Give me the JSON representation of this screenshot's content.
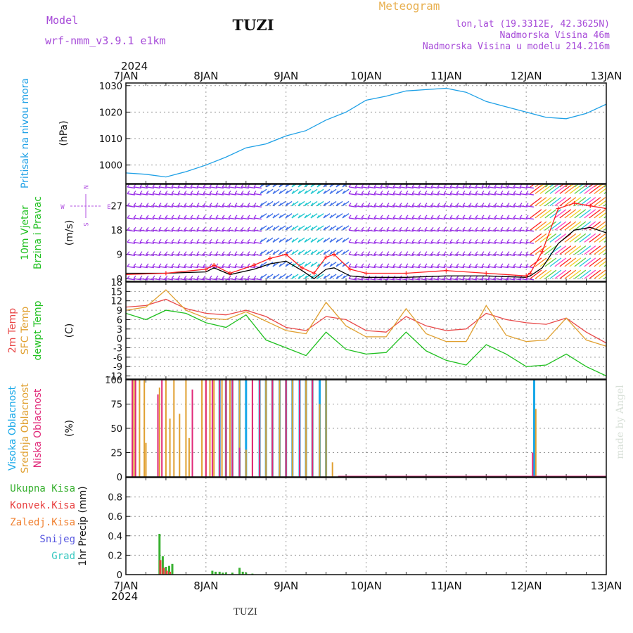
{
  "header": {
    "model_label": "Model",
    "model_name": "wrf-nmm_v3.9.1 e1km",
    "station": "TUZI",
    "product": "Meteogram",
    "lonlat": "lon,lat (19.3312E, 42.3625N)",
    "elevation": "Nadmorska Visina 46m",
    "model_elevation": "Nadmorska Visina u modelu 214.216m"
  },
  "footer": {
    "station": "TUZI",
    "credit": "made by Angel"
  },
  "time_axis": {
    "year": "2024",
    "ticks": [
      "7JAN",
      "8JAN",
      "9JAN",
      "10JAN",
      "11JAN",
      "12JAN",
      "13JAN"
    ]
  },
  "colors": {
    "pressure": "#1ea0e6",
    "wind_speed": "#000000",
    "wind_gust": "#ff2020",
    "t2m": "#e84848",
    "sfc": "#e0a030",
    "dewpt": "#20c020",
    "cloud_high": "#18a8e8",
    "cloud_mid": "#e0a030",
    "cloud_low": "#e02878",
    "rain_total": "#38b030",
    "rain_conv": "#e84040",
    "frozen": "#f08030",
    "snow": "#5858e0",
    "graupel": "#38c8c0",
    "barb": "#9a30e8"
  },
  "chart_data": [
    {
      "type": "line",
      "panel": "pressure",
      "label_lines": [
        "Pritisak na nivou mora"
      ],
      "unit": "(hPa)",
      "ylim": [
        993,
        1031
      ],
      "yticks": [
        1000,
        1010,
        1020,
        1030
      ],
      "grid": true,
      "series": [
        {
          "x": [
            0,
            0.25,
            0.5,
            0.75,
            1.0,
            1.25,
            1.5,
            1.75,
            2.0,
            2.25,
            2.5,
            2.75,
            3.0,
            3.25,
            3.5,
            3.75,
            4.0,
            4.25,
            4.5,
            4.75,
            5.0,
            5.25,
            5.5,
            5.75,
            6.0
          ],
          "values": [
            997,
            996.5,
            995.5,
            997.5,
            1000,
            1003,
            1006.5,
            1008,
            1011,
            1013,
            1017,
            1020,
            1024.5,
            1026,
            1028,
            1028.5,
            1029,
            1027.5,
            1024,
            1022,
            1020,
            1018,
            1017.5,
            1019.5,
            1023
          ]
        }
      ]
    },
    {
      "type": "line",
      "panel": "wind",
      "label_lines": [
        "10m Vjetar",
        "Brzina i Pravac"
      ],
      "unit": "(m/s)",
      "ylim": [
        -1,
        35
      ],
      "yticks": [
        0,
        9,
        18,
        27
      ],
      "grid": true,
      "compass": {
        "N": "N",
        "S": "S",
        "E": "E",
        "W": "W"
      },
      "series": [
        {
          "name_key": "speed",
          "x": [
            0,
            0.5,
            1.0,
            1.1,
            1.3,
            1.6,
            1.8,
            2.0,
            2.2,
            2.35,
            2.5,
            2.6,
            2.8,
            3.0,
            3.5,
            4.0,
            4.5,
            5.0,
            5.05,
            5.2,
            5.4,
            5.6,
            5.8,
            6.0
          ],
          "values": [
            2,
            2,
            2.5,
            4,
            1.5,
            3.5,
            5.5,
            6.5,
            3,
            0,
            3.5,
            4,
            1,
            0.5,
            0.5,
            1,
            1,
            0.5,
            1,
            4,
            13,
            18,
            19,
            17
          ]
        },
        {
          "name_key": "gust",
          "x": [
            0,
            0.5,
            1.0,
            1.1,
            1.3,
            1.6,
            1.8,
            2.0,
            2.2,
            2.35,
            2.5,
            2.6,
            2.8,
            3.0,
            3.5,
            4.0,
            4.5,
            5.0,
            5.05,
            5.2,
            5.4,
            5.6,
            5.8,
            6.0
          ],
          "values": [
            1.5,
            2,
            3.5,
            5,
            2,
            5,
            7.5,
            9,
            4,
            2,
            8,
            9,
            3.5,
            2,
            2,
            3,
            2,
            1,
            2,
            10,
            26,
            28,
            27,
            26
          ]
        }
      ]
    },
    {
      "type": "line",
      "panel": "temperature",
      "label_lines": [
        "2m Temp",
        "SFC Temp",
        "dewpt Temp"
      ],
      "unit": "(C)",
      "ylim": [
        -13,
        18
      ],
      "yticks": [
        -12,
        -9,
        -6,
        -3,
        0,
        3,
        6,
        9,
        12,
        15,
        18
      ],
      "grid": true,
      "series": [
        {
          "name_key": "t2m",
          "x": [
            0,
            0.25,
            0.5,
            0.75,
            1.0,
            1.25,
            1.5,
            1.75,
            2.0,
            2.25,
            2.5,
            2.75,
            3.0,
            3.25,
            3.5,
            3.75,
            4.0,
            4.25,
            4.5,
            4.75,
            5.0,
            5.25,
            5.5,
            5.75,
            6.0
          ],
          "values": [
            10,
            10.5,
            12.5,
            9.5,
            8,
            7.5,
            9,
            7,
            3.5,
            2.5,
            7,
            6,
            2.5,
            2,
            7,
            4,
            2.5,
            3,
            8,
            6,
            5,
            4.5,
            6.5,
            2,
            -1.5
          ]
        },
        {
          "name_key": "sfc",
          "x": [
            0,
            0.25,
            0.5,
            0.75,
            1.0,
            1.25,
            1.5,
            1.75,
            2.0,
            2.25,
            2.5,
            2.75,
            3.0,
            3.25,
            3.5,
            3.75,
            4.0,
            4.25,
            4.5,
            4.75,
            5.0,
            5.25,
            5.5,
            5.75,
            6.0
          ],
          "values": [
            9,
            10,
            15.5,
            9,
            6.5,
            6,
            8.5,
            5.5,
            2.5,
            1.5,
            11.5,
            4,
            0.5,
            0.5,
            9.5,
            1.5,
            -1,
            -1,
            10.5,
            1,
            -1,
            -0.5,
            6.5,
            -0.5,
            -2.5
          ]
        },
        {
          "name_key": "dewpt",
          "x": [
            0,
            0.25,
            0.5,
            0.75,
            1.0,
            1.25,
            1.5,
            1.75,
            2.0,
            2.25,
            2.5,
            2.75,
            3.0,
            3.25,
            3.5,
            3.75,
            4.0,
            4.25,
            4.5,
            4.75,
            5.0,
            5.25,
            5.5,
            5.75,
            6.0
          ],
          "values": [
            8,
            6,
            9,
            8,
            5,
            3.5,
            7.5,
            -0.5,
            -3,
            -5.5,
            2,
            -3.5,
            -5,
            -4.5,
            2,
            -4,
            -7,
            -8.5,
            -2,
            -5,
            -9,
            -8.5,
            -5,
            -9,
            -12
          ]
        }
      ]
    },
    {
      "type": "bar",
      "panel": "clouds",
      "label_lines": [
        "Visoka Oblacnost",
        "Srednja Oblacnost",
        "Niska Oblacnost"
      ],
      "unit": "(%)",
      "ylim": [
        0,
        100
      ],
      "yticks": [
        0,
        25,
        50,
        75,
        100
      ],
      "grid": true,
      "series": [
        {
          "name_key": "high",
          "x": [
            1.17,
            1.25,
            1.33,
            1.42,
            1.5,
            1.67,
            1.75,
            1.83,
            1.92,
            2.0,
            2.08,
            2.17,
            2.25,
            2.33,
            2.42,
            2.5,
            5.1
          ],
          "values": [
            100,
            100,
            100,
            100,
            100,
            100,
            100,
            100,
            100,
            100,
            100,
            100,
            100,
            100,
            100,
            100,
            100
          ]
        },
        {
          "name_key": "mid",
          "x": [
            0.1,
            0.17,
            0.23,
            0.25,
            0.42,
            0.5,
            0.55,
            0.6,
            0.67,
            0.75,
            0.79,
            0.95,
            1.0,
            1.05,
            1.1,
            1.2,
            1.25,
            1.3,
            1.33,
            1.42,
            1.5,
            1.58,
            1.67,
            1.75,
            1.83,
            1.92,
            2.0,
            2.08,
            2.17,
            2.25,
            2.33,
            2.42,
            2.5,
            2.58,
            5.12
          ],
          "values": [
            100,
            100,
            100,
            35,
            92,
            100,
            60,
            100,
            65,
            100,
            40,
            100,
            100,
            100,
            100,
            100,
            100,
            100,
            100,
            100,
            28,
            100,
            100,
            100,
            100,
            100,
            100,
            100,
            100,
            100,
            100,
            75,
            100,
            15,
            70
          ]
        },
        {
          "name_key": "low",
          "x": [
            0.08,
            0.12,
            0.4,
            0.45,
            0.83,
            1.0,
            1.08,
            1.17,
            1.25,
            1.33,
            1.42,
            1.58,
            1.67,
            1.83,
            2.0,
            2.17,
            2.33,
            5.08
          ],
          "values": [
            100,
            100,
            85,
            100,
            90,
            100,
            100,
            100,
            100,
            100,
            30,
            100,
            100,
            100,
            100,
            100,
            100,
            25
          ]
        }
      ]
    },
    {
      "type": "bar",
      "panel": "precipitation",
      "label_lines": [
        "Ukupna Kisa",
        "Konvek.Kisa",
        "Zaledj.Kisa",
        "Snijeg",
        "Grad"
      ],
      "unit": "1hr Precip (mm)",
      "ylim": [
        0,
        1.0
      ],
      "yticks": [
        0,
        0.2,
        0.4,
        0.6,
        0.8
      ],
      "grid": true,
      "series": [
        {
          "name_key": "total",
          "x": [
            0.42,
            0.46,
            0.5,
            0.54,
            0.58,
            1.08,
            1.12,
            1.17,
            1.21,
            1.25,
            1.33,
            1.42,
            1.46,
            1.5,
            1.58
          ],
          "values": [
            0.42,
            0.19,
            0.08,
            0.09,
            0.11,
            0.04,
            0.03,
            0.03,
            0.02,
            0.02,
            0.02,
            0.07,
            0.03,
            0.02,
            0.01
          ]
        },
        {
          "name_key": "conv",
          "x": [
            0.43,
            0.47,
            0.51,
            0.55
          ],
          "values": [
            0.15,
            0.07,
            0.04,
            0.03
          ]
        }
      ]
    }
  ]
}
